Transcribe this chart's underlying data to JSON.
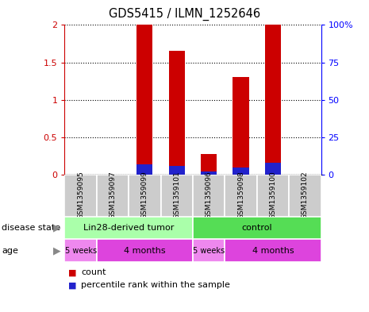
{
  "title": "GDS5415 / ILMN_1252646",
  "samples": [
    "GSM1359095",
    "GSM1359097",
    "GSM1359099",
    "GSM1359101",
    "GSM1359096",
    "GSM1359098",
    "GSM1359100",
    "GSM1359102"
  ],
  "count_values": [
    0.0,
    0.0,
    2.0,
    1.65,
    0.28,
    1.3,
    2.0,
    0.0
  ],
  "percentile_values": [
    0.0,
    0.0,
    0.14,
    0.12,
    0.04,
    0.1,
    0.16,
    0.0
  ],
  "ylim_left": [
    0,
    2
  ],
  "ylim_right": [
    0,
    100
  ],
  "yticks_left": [
    0,
    0.5,
    1.0,
    1.5,
    2.0
  ],
  "yticks_right": [
    0,
    25,
    50,
    75,
    100
  ],
  "ytick_labels_left": [
    "0",
    "0.5",
    "1",
    "1.5",
    "2"
  ],
  "ytick_labels_right": [
    "0",
    "25",
    "50",
    "75",
    "100%"
  ],
  "bar_color_red": "#CC0000",
  "bar_color_blue": "#2222CC",
  "bar_width": 0.5,
  "disease_state_groups": [
    {
      "label": "Lin28-derived tumor",
      "start": 0,
      "end": 4,
      "color": "#AAFFAA"
    },
    {
      "label": "control",
      "start": 4,
      "end": 8,
      "color": "#55DD55"
    }
  ],
  "age_groups": [
    {
      "label": "5 weeks",
      "start": 0,
      "end": 1,
      "color": "#EE88EE"
    },
    {
      "label": "4 months",
      "start": 1,
      "end": 4,
      "color": "#DD44DD"
    },
    {
      "label": "5 weeks",
      "start": 4,
      "end": 5,
      "color": "#EE88EE"
    },
    {
      "label": "4 months",
      "start": 5,
      "end": 8,
      "color": "#DD44DD"
    }
  ],
  "legend_items": [
    {
      "label": "count",
      "color": "#CC0000"
    },
    {
      "label": "percentile rank within the sample",
      "color": "#2222CC"
    }
  ],
  "background_color": "#FFFFFF",
  "sample_box_color": "#CCCCCC",
  "label_disease_state": "disease state",
  "label_age": "age"
}
